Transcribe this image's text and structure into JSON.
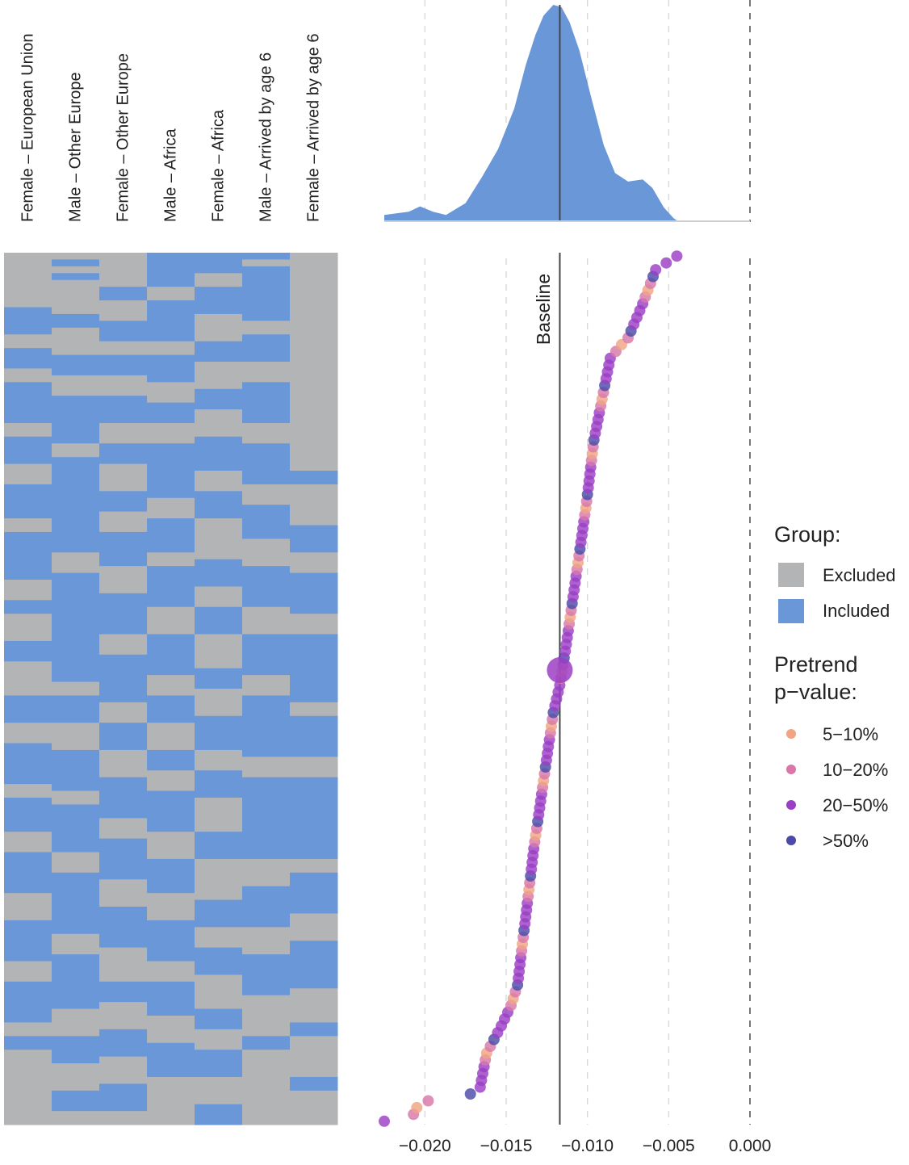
{
  "colors": {
    "excluded": "#b2b4b5",
    "included": "#6a97d8",
    "density_fill": "#6a97d8",
    "baseline": "#444444",
    "grid": "#d9d9d9",
    "pv_5_10": "#f0a584",
    "pv_10_20": "#d877a8",
    "pv_20_50": "#9b3fc4",
    "pv_gt_50": "#4b4aa8"
  },
  "columns": [
    "Female – European Union",
    "Male – Other Europe",
    "Female – Other Europe",
    "Male – Africa",
    "Female – Africa",
    "Male – Arrived by age 6",
    "Female – Arrived by age 6"
  ],
  "baseline_label": "Baseline",
  "legend": {
    "group_title": "Group:",
    "group_items": [
      {
        "label": "Excluded",
        "color_key": "excluded"
      },
      {
        "label": "Included",
        "color_key": "included"
      }
    ],
    "pvalue_title_1": "Pretrend",
    "pvalue_title_2": "p−value:",
    "pvalue_items": [
      {
        "label": "5−10%",
        "color_key": "pv_5_10"
      },
      {
        "label": "10−20%",
        "color_key": "pv_10_20"
      },
      {
        "label": "20−50%",
        "color_key": "pv_20_50"
      },
      {
        "label": ">50%",
        "color_key": "pv_gt_50"
      }
    ]
  },
  "chart_data": {
    "type": "scatter",
    "description_type": "specification curve with density and inclusion heatmap",
    "x_ticks": [
      "−0.020",
      "−0.015",
      "−0.010",
      "−0.005",
      "0.000"
    ],
    "x_tick_values": [
      -0.02,
      -0.015,
      -0.01,
      -0.005,
      0.0
    ],
    "xlim": [
      -0.0225,
      0.0
    ],
    "baseline_estimate": -0.0117,
    "n_specifications": 128,
    "estimates_sorted_anchor": [
      [
        0,
        -0.0225
      ],
      [
        1,
        -0.0207
      ],
      [
        2,
        -0.0205
      ],
      [
        3,
        -0.0198
      ],
      [
        4,
        -0.0172
      ],
      [
        5,
        -0.0166
      ],
      [
        10,
        -0.0162
      ],
      [
        14,
        -0.0153
      ],
      [
        17,
        -0.0147
      ],
      [
        20,
        -0.0143
      ],
      [
        30,
        -0.0138
      ],
      [
        40,
        -0.0133
      ],
      [
        50,
        -0.0127
      ],
      [
        55,
        -0.0124
      ],
      [
        60,
        -0.0121
      ],
      [
        64,
        -0.0117
      ],
      [
        70,
        -0.0113
      ],
      [
        80,
        -0.0107
      ],
      [
        90,
        -0.0101
      ],
      [
        100,
        -0.0096
      ],
      [
        106,
        -0.0091
      ],
      [
        112,
        -0.0086
      ],
      [
        114,
        -0.0079
      ],
      [
        115,
        -0.0075
      ],
      [
        120,
        -0.0066
      ],
      [
        125,
        -0.0058
      ],
      [
        127,
        -0.0045
      ]
    ],
    "pvalue_category_cycle": [
      "20-50%",
      "20-50%",
      "10-20%",
      "20-50%",
      "10-20%",
      ">50%",
      "20-50%",
      "5-10%"
    ],
    "density_curve": [
      [
        -0.0225,
        0.025
      ],
      [
        -0.021,
        0.04
      ],
      [
        -0.0203,
        0.065
      ],
      [
        -0.0195,
        0.04
      ],
      [
        -0.0187,
        0.025
      ],
      [
        -0.0175,
        0.08
      ],
      [
        -0.0165,
        0.2
      ],
      [
        -0.0155,
        0.33
      ],
      [
        -0.0145,
        0.52
      ],
      [
        -0.0138,
        0.72
      ],
      [
        -0.0132,
        0.86
      ],
      [
        -0.0127,
        0.95
      ],
      [
        -0.0121,
        1.0
      ],
      [
        -0.0116,
        0.99
      ],
      [
        -0.0111,
        0.92
      ],
      [
        -0.0105,
        0.79
      ],
      [
        -0.0098,
        0.58
      ],
      [
        -0.009,
        0.35
      ],
      [
        -0.0083,
        0.22
      ],
      [
        -0.0075,
        0.18
      ],
      [
        -0.0066,
        0.19
      ],
      [
        -0.006,
        0.15
      ],
      [
        -0.0053,
        0.06
      ],
      [
        -0.0047,
        0.01
      ],
      [
        -0.0045,
        0.0
      ]
    ],
    "heatmap_pattern_ground_truth_note": "",
    "heatmap_runs": {
      "Female – European Union": [
        [
          0,
          8,
          0
        ],
        [
          8,
          4,
          1
        ],
        [
          12,
          2,
          0
        ],
        [
          14,
          3,
          1
        ],
        [
          17,
          2,
          0
        ],
        [
          19,
          6,
          1
        ],
        [
          25,
          2,
          0
        ],
        [
          27,
          4,
          1
        ],
        [
          31,
          3,
          0
        ],
        [
          34,
          5,
          1
        ],
        [
          39,
          2,
          0
        ],
        [
          41,
          7,
          1
        ],
        [
          48,
          3,
          0
        ],
        [
          51,
          2,
          1
        ],
        [
          53,
          4,
          0
        ],
        [
          57,
          3,
          1
        ],
        [
          60,
          5,
          0
        ],
        [
          65,
          4,
          1
        ],
        [
          69,
          3,
          0
        ],
        [
          72,
          6,
          1
        ],
        [
          78,
          2,
          0
        ],
        [
          80,
          5,
          1
        ],
        [
          85,
          3,
          0
        ],
        [
          88,
          6,
          1
        ],
        [
          94,
          4,
          0
        ],
        [
          98,
          6,
          1
        ],
        [
          104,
          3,
          0
        ],
        [
          107,
          6,
          1
        ],
        [
          113,
          2,
          0
        ],
        [
          115,
          2,
          1
        ],
        [
          117,
          11,
          0
        ]
      ],
      "Male – Other Europe": [
        [
          0,
          1,
          0
        ],
        [
          1,
          1,
          1
        ],
        [
          2,
          1,
          0
        ],
        [
          3,
          1,
          1
        ],
        [
          4,
          5,
          0
        ],
        [
          9,
          2,
          1
        ],
        [
          11,
          4,
          0
        ],
        [
          15,
          3,
          1
        ],
        [
          18,
          3,
          0
        ],
        [
          21,
          7,
          1
        ],
        [
          28,
          2,
          0
        ],
        [
          30,
          14,
          1
        ],
        [
          44,
          3,
          0
        ],
        [
          47,
          16,
          1
        ],
        [
          63,
          2,
          0
        ],
        [
          65,
          4,
          1
        ],
        [
          69,
          4,
          0
        ],
        [
          73,
          6,
          1
        ],
        [
          79,
          2,
          0
        ],
        [
          81,
          7,
          1
        ],
        [
          88,
          3,
          0
        ],
        [
          91,
          9,
          1
        ],
        [
          100,
          3,
          0
        ],
        [
          103,
          8,
          1
        ],
        [
          111,
          4,
          0
        ],
        [
          115,
          4,
          1
        ],
        [
          119,
          4,
          0
        ],
        [
          123,
          3,
          1
        ],
        [
          126,
          2,
          0
        ]
      ],
      "Female – Other Europe": [
        [
          0,
          5,
          0
        ],
        [
          5,
          2,
          1
        ],
        [
          7,
          3,
          0
        ],
        [
          10,
          3,
          1
        ],
        [
          13,
          2,
          0
        ],
        [
          15,
          3,
          1
        ],
        [
          18,
          3,
          0
        ],
        [
          21,
          4,
          1
        ],
        [
          25,
          3,
          0
        ],
        [
          28,
          3,
          1
        ],
        [
          31,
          4,
          0
        ],
        [
          35,
          3,
          1
        ],
        [
          38,
          3,
          0
        ],
        [
          41,
          5,
          1
        ],
        [
          46,
          4,
          0
        ],
        [
          50,
          6,
          1
        ],
        [
          56,
          3,
          0
        ],
        [
          59,
          7,
          1
        ],
        [
          66,
          3,
          0
        ],
        [
          69,
          4,
          1
        ],
        [
          73,
          4,
          0
        ],
        [
          77,
          6,
          1
        ],
        [
          83,
          3,
          0
        ],
        [
          86,
          6,
          1
        ],
        [
          92,
          4,
          0
        ],
        [
          96,
          6,
          1
        ],
        [
          102,
          5,
          0
        ],
        [
          107,
          3,
          1
        ],
        [
          110,
          4,
          0
        ],
        [
          114,
          4,
          1
        ],
        [
          118,
          4,
          0
        ],
        [
          122,
          4,
          1
        ],
        [
          126,
          2,
          0
        ]
      ],
      "Male – Africa": [
        [
          0,
          5,
          1
        ],
        [
          5,
          2,
          0
        ],
        [
          7,
          6,
          1
        ],
        [
          13,
          2,
          0
        ],
        [
          15,
          4,
          1
        ],
        [
          19,
          3,
          0
        ],
        [
          22,
          3,
          1
        ],
        [
          25,
          3,
          0
        ],
        [
          28,
          8,
          1
        ],
        [
          36,
          3,
          0
        ],
        [
          39,
          5,
          1
        ],
        [
          44,
          2,
          0
        ],
        [
          46,
          6,
          1
        ],
        [
          52,
          4,
          0
        ],
        [
          56,
          6,
          1
        ],
        [
          62,
          3,
          0
        ],
        [
          65,
          4,
          1
        ],
        [
          69,
          4,
          0
        ],
        [
          73,
          3,
          1
        ],
        [
          76,
          3,
          0
        ],
        [
          79,
          6,
          1
        ],
        [
          85,
          4,
          0
        ],
        [
          89,
          5,
          1
        ],
        [
          94,
          4,
          0
        ],
        [
          98,
          6,
          1
        ],
        [
          104,
          3,
          0
        ],
        [
          107,
          5,
          1
        ],
        [
          112,
          4,
          0
        ],
        [
          116,
          5,
          1
        ],
        [
          121,
          7,
          0
        ]
      ],
      "Female – Africa": [
        [
          0,
          3,
          1
        ],
        [
          3,
          2,
          0
        ],
        [
          5,
          4,
          1
        ],
        [
          9,
          4,
          0
        ],
        [
          13,
          3,
          1
        ],
        [
          16,
          4,
          0
        ],
        [
          20,
          3,
          1
        ],
        [
          23,
          4,
          0
        ],
        [
          27,
          5,
          1
        ],
        [
          32,
          3,
          0
        ],
        [
          35,
          4,
          1
        ],
        [
          39,
          6,
          0
        ],
        [
          45,
          4,
          1
        ],
        [
          49,
          3,
          0
        ],
        [
          52,
          4,
          1
        ],
        [
          56,
          5,
          0
        ],
        [
          61,
          3,
          1
        ],
        [
          64,
          4,
          0
        ],
        [
          68,
          5,
          1
        ],
        [
          73,
          3,
          0
        ],
        [
          76,
          4,
          1
        ],
        [
          80,
          5,
          0
        ],
        [
          85,
          4,
          1
        ],
        [
          89,
          6,
          0
        ],
        [
          95,
          4,
          1
        ],
        [
          99,
          3,
          0
        ],
        [
          102,
          4,
          1
        ],
        [
          106,
          5,
          0
        ],
        [
          111,
          3,
          1
        ],
        [
          114,
          3,
          0
        ],
        [
          117,
          4,
          1
        ],
        [
          121,
          4,
          0
        ],
        [
          125,
          3,
          1
        ]
      ],
      "Male – Arrived by age 6": [
        [
          0,
          1,
          1
        ],
        [
          1,
          1,
          0
        ],
        [
          2,
          8,
          1
        ],
        [
          10,
          2,
          0
        ],
        [
          12,
          4,
          1
        ],
        [
          16,
          3,
          0
        ],
        [
          19,
          6,
          1
        ],
        [
          25,
          3,
          0
        ],
        [
          28,
          6,
          1
        ],
        [
          34,
          3,
          0
        ],
        [
          37,
          5,
          1
        ],
        [
          42,
          4,
          0
        ],
        [
          46,
          6,
          1
        ],
        [
          52,
          4,
          0
        ],
        [
          56,
          6,
          1
        ],
        [
          62,
          3,
          0
        ],
        [
          65,
          9,
          1
        ],
        [
          74,
          3,
          0
        ],
        [
          77,
          12,
          1
        ],
        [
          89,
          4,
          0
        ],
        [
          93,
          6,
          1
        ],
        [
          99,
          4,
          0
        ],
        [
          103,
          6,
          1
        ],
        [
          109,
          6,
          0
        ],
        [
          115,
          2,
          1
        ],
        [
          117,
          11,
          0
        ]
      ],
      "Female – Arrived by age 6": [
        [
          0,
          32,
          0
        ],
        [
          32,
          2,
          1
        ],
        [
          34,
          6,
          0
        ],
        [
          40,
          4,
          1
        ],
        [
          44,
          3,
          0
        ],
        [
          47,
          6,
          1
        ],
        [
          53,
          3,
          0
        ],
        [
          56,
          10,
          1
        ],
        [
          66,
          2,
          0
        ],
        [
          68,
          6,
          1
        ],
        [
          74,
          3,
          0
        ],
        [
          77,
          12,
          1
        ],
        [
          89,
          2,
          0
        ],
        [
          91,
          6,
          1
        ],
        [
          97,
          4,
          0
        ],
        [
          101,
          7,
          1
        ],
        [
          108,
          5,
          0
        ],
        [
          113,
          2,
          1
        ],
        [
          115,
          6,
          0
        ],
        [
          121,
          2,
          1
        ],
        [
          123,
          5,
          0
        ]
      ]
    }
  }
}
